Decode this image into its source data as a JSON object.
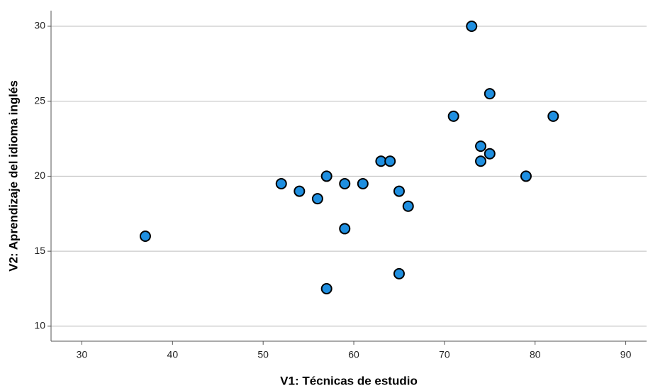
{
  "chart_data": {
    "type": "scatter",
    "xlabel": "V1: Técnicas de estudio",
    "ylabel": "V2: Aprendizaje del idioma inglés",
    "x": [
      37,
      52,
      54,
      56,
      57,
      57,
      59,
      59,
      61,
      63,
      64,
      65,
      65,
      66,
      71,
      73,
      74,
      74,
      75,
      75,
      79,
      82
    ],
    "series": [
      {
        "color": "#1f8fe0",
        "values": [
          16,
          19.5,
          19,
          18.5,
          20,
          12.5,
          19.5,
          16.5,
          19.5,
          21,
          21,
          19,
          13.5,
          18,
          24,
          30,
          22,
          21,
          25.5,
          21.5,
          20,
          24
        ]
      }
    ],
    "xlim": [
      26.6,
      92.3
    ],
    "xticks": [
      30,
      40,
      50,
      60,
      70,
      80,
      90
    ],
    "ylim": [
      9.0,
      31.04
    ],
    "yticks": [
      10,
      15,
      20,
      25,
      30
    ],
    "grid": true
  }
}
